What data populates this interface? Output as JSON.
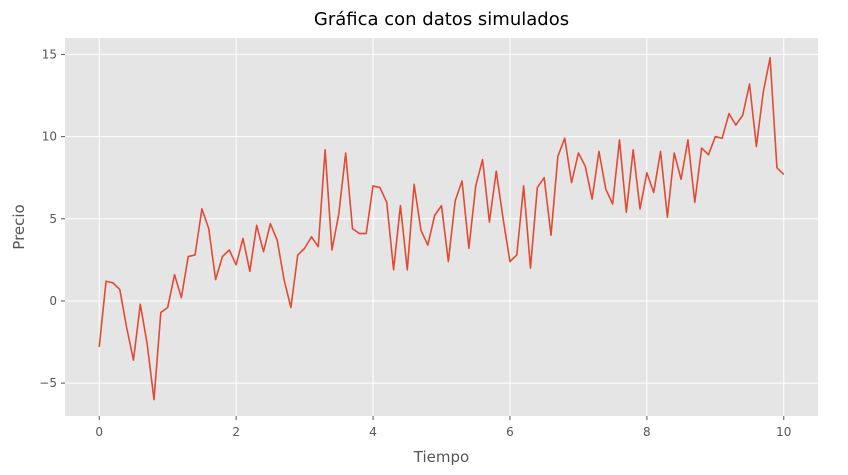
{
  "chart_data": {
    "type": "line",
    "title": "Gráfica con datos simulados",
    "xlabel": "Tiempo",
    "ylabel": "Precio",
    "xlim": [
      -0.5,
      10.5
    ],
    "ylim": [
      -7,
      16
    ],
    "xticks": [
      0,
      2,
      4,
      6,
      8,
      10
    ],
    "xtick_labels": [
      "0",
      "2",
      "4",
      "6",
      "8",
      "10"
    ],
    "yticks": [
      -5,
      0,
      5,
      10,
      15
    ],
    "ytick_labels": [
      "−5",
      "0",
      "5",
      "10",
      "15"
    ],
    "grid": true,
    "style": "ggplot",
    "colors": {
      "background": "#E5E5E5",
      "grid": "#FFFFFF",
      "line": "#E24A33"
    },
    "series": [
      {
        "x": [
          0,
          0.1,
          0.2,
          0.3,
          0.4,
          0.5,
          0.6,
          0.7,
          0.8,
          0.9,
          1.0,
          1.1,
          1.2,
          1.3,
          1.4,
          1.5,
          1.6,
          1.7,
          1.8,
          1.9,
          2.0,
          2.1,
          2.2,
          2.3,
          2.4,
          2.5,
          2.6,
          2.7,
          2.8,
          2.9,
          3.0,
          3.1,
          3.2,
          3.3,
          3.4,
          3.5,
          3.6,
          3.7,
          3.8,
          3.9,
          4.0,
          4.1,
          4.2,
          4.3,
          4.4,
          4.5,
          4.6,
          4.7,
          4.8,
          4.9,
          5.0,
          5.1,
          5.2,
          5.3,
          5.4,
          5.5,
          5.6,
          5.7,
          5.8,
          5.9,
          6.0,
          6.1,
          6.2,
          6.3,
          6.4,
          6.5,
          6.6,
          6.7,
          6.8,
          6.9,
          7.0,
          7.1,
          7.2,
          7.3,
          7.4,
          7.5,
          7.6,
          7.7,
          7.8,
          7.9,
          8.0,
          8.1,
          8.2,
          8.3,
          8.4,
          8.5,
          8.6,
          8.7,
          8.8,
          8.9,
          9.0,
          9.1,
          9.2,
          9.3,
          9.4,
          9.5,
          9.6,
          9.7,
          9.8,
          9.9,
          10.0
        ],
        "y": [
          -2.8,
          1.2,
          1.1,
          0.7,
          -1.6,
          -3.6,
          -0.2,
          -2.6,
          -6.0,
          -0.7,
          -0.4,
          1.6,
          0.2,
          2.7,
          2.8,
          5.6,
          4.4,
          1.3,
          2.7,
          3.1,
          2.2,
          3.8,
          1.8,
          4.6,
          3.0,
          4.7,
          3.7,
          1.3,
          -0.4,
          2.8,
          3.2,
          3.9,
          3.3,
          9.2,
          3.1,
          5.3,
          9.0,
          4.4,
          4.1,
          4.1,
          7.0,
          6.9,
          6.0,
          1.9,
          5.8,
          1.9,
          7.1,
          4.3,
          3.4,
          5.2,
          5.8,
          2.4,
          6.1,
          7.3,
          3.2,
          7.0,
          8.6,
          4.8,
          7.9,
          5.0,
          2.4,
          2.8,
          7.0,
          2.0,
          6.9,
          7.5,
          4.0,
          8.8,
          9.9,
          7.2,
          9.0,
          8.2,
          6.2,
          9.1,
          6.8,
          5.9,
          9.8,
          5.4,
          9.2,
          5.6,
          7.8,
          6.6,
          9.1,
          5.1,
          9.0,
          7.4,
          9.8,
          6.0,
          9.3,
          8.9,
          10.0,
          9.9,
          11.4,
          10.7,
          11.3,
          13.2,
          9.4,
          12.7,
          14.8,
          8.1,
          7.7
        ]
      }
    ]
  }
}
